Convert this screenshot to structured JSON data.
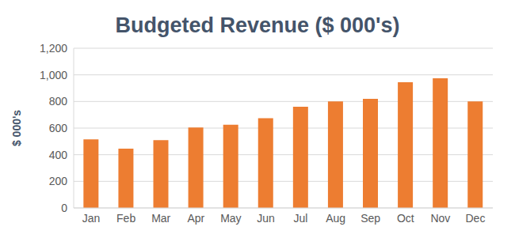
{
  "chart_data": {
    "type": "bar",
    "title": "Budgeted Revenue ($ 000's)",
    "y_label": "$ 000's",
    "categories": [
      "Jan",
      "Feb",
      "Mar",
      "Apr",
      "May",
      "Jun",
      "Jul",
      "Aug",
      "Sep",
      "Oct",
      "Nov",
      "Dec"
    ],
    "values": [
      515,
      445,
      510,
      605,
      625,
      675,
      760,
      800,
      820,
      945,
      975,
      800
    ],
    "color": "#ed7d31",
    "ylim": [
      0,
      1200
    ],
    "yticks": [
      0,
      200,
      400,
      600,
      800,
      {
        "value": 1000,
        "label": "1,000"
      },
      {
        "value": 1200,
        "label": "1,200"
      }
    ],
    "grid": true
  }
}
